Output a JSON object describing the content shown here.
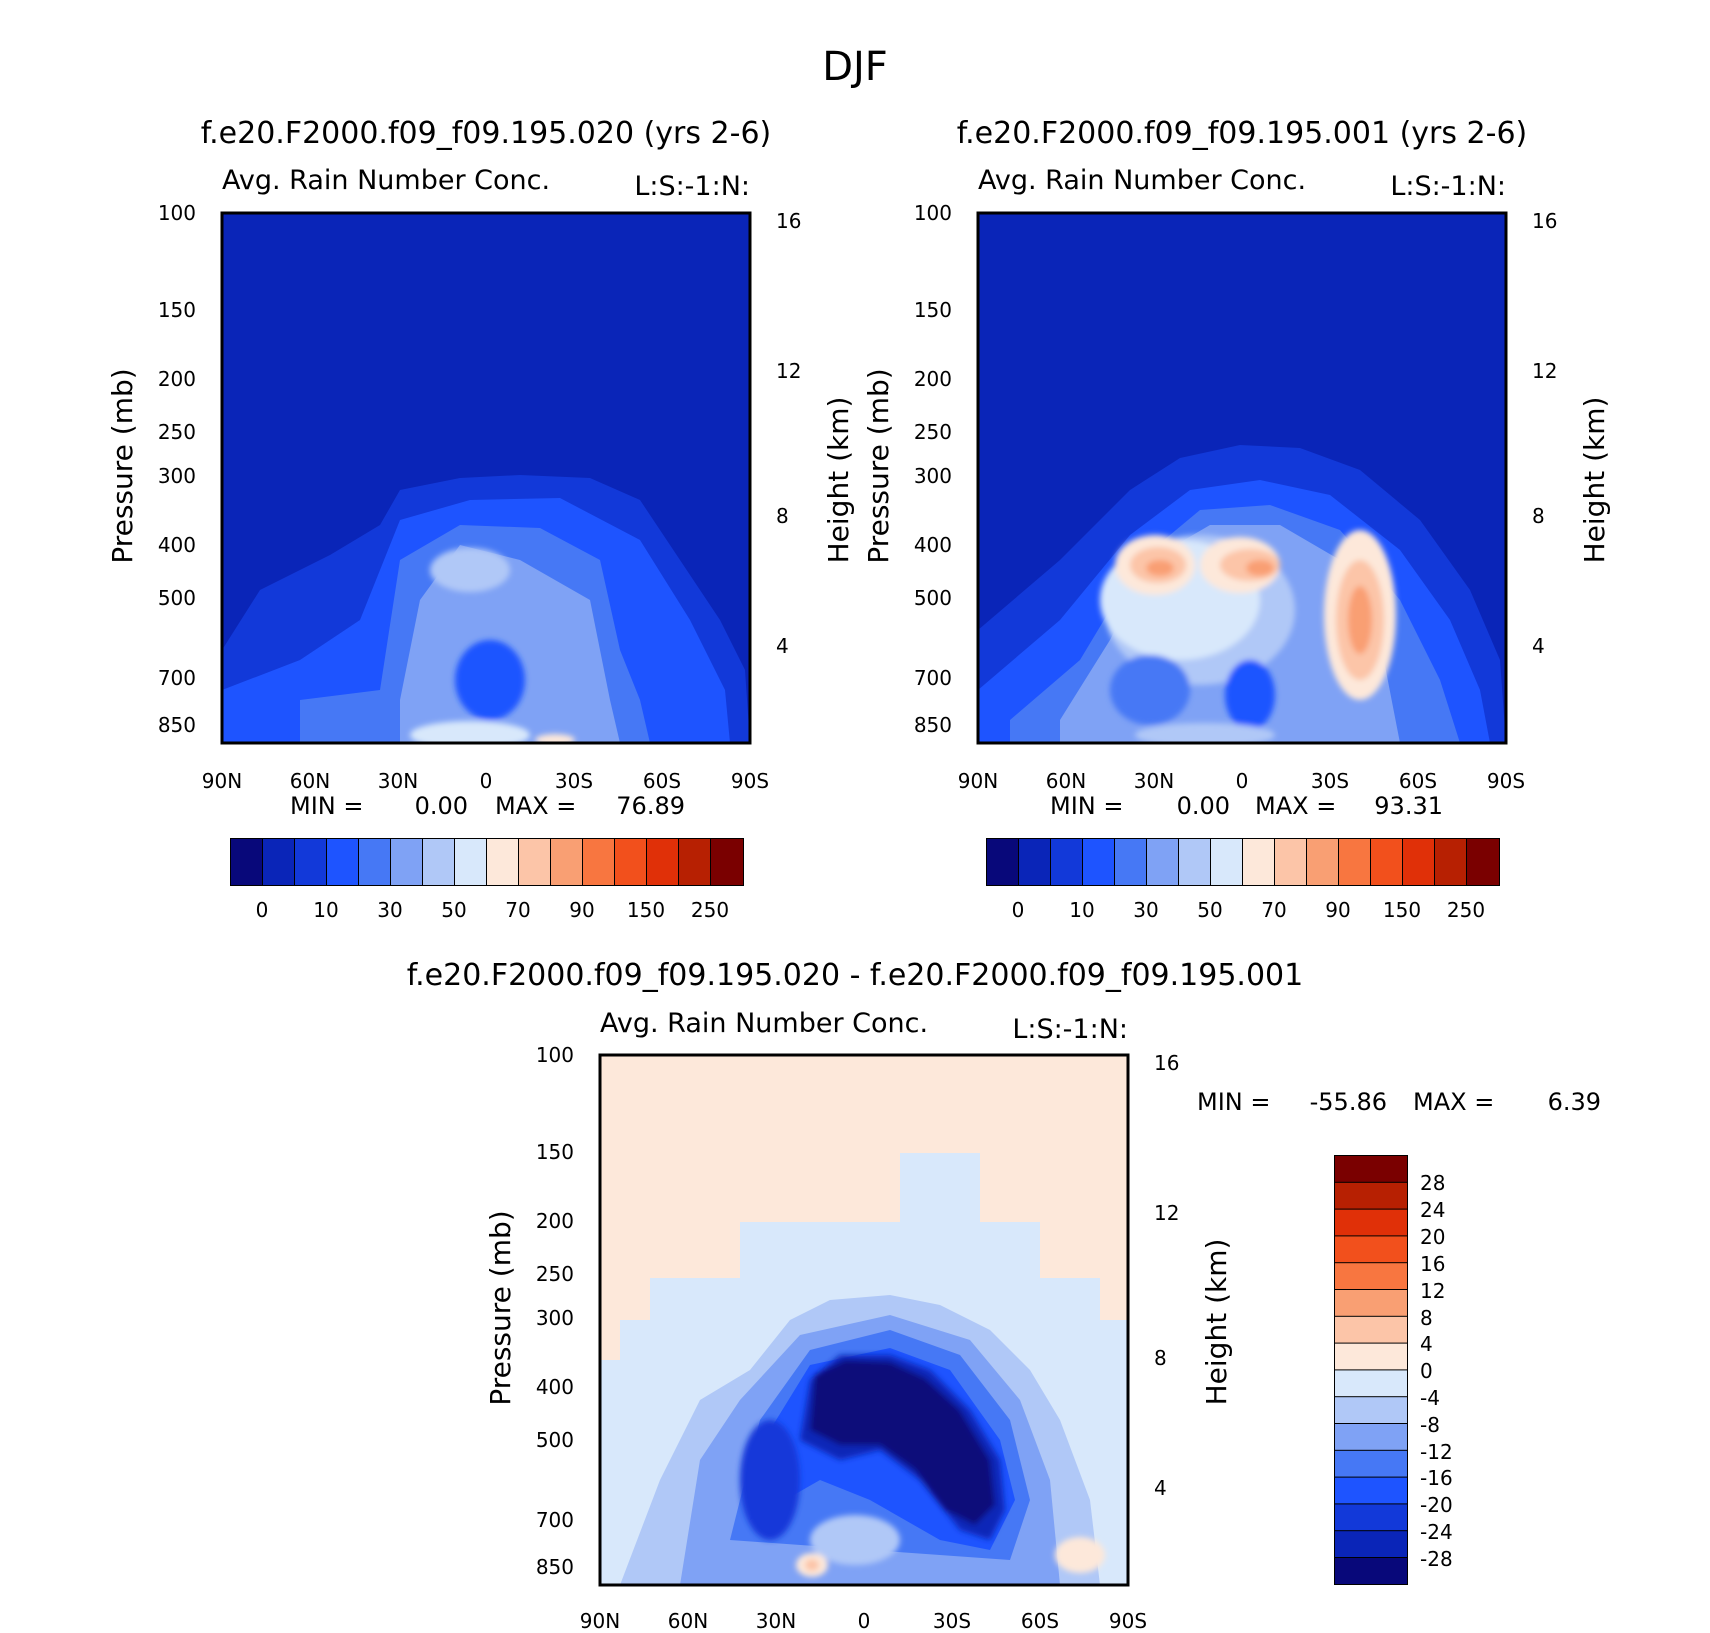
{
  "figure": {
    "title": "DJF",
    "colors": {
      "deep_blue": "#0f27b8",
      "seq_palette": [
        "#08087a",
        "#0a25b8",
        "#1239d9",
        "#1e54ff",
        "#4678f5",
        "#7fa2f5",
        "#b0c8f7",
        "#d8e8fb",
        "#fde8da",
        "#fcc5a8",
        "#f99f73",
        "#f87640",
        "#f2501c",
        "#e03008",
        "#b72002",
        "#7a0000"
      ],
      "diff_palette": [
        "#08087a",
        "#0a25b8",
        "#1239d9",
        "#1e54ff",
        "#4678f5",
        "#7fa2f5",
        "#b0c8f7",
        "#d8e8fb",
        "#fde8da",
        "#fcc5a8",
        "#f99f73",
        "#f87640",
        "#f2501c",
        "#e03008",
        "#b72002",
        "#7a0000"
      ]
    }
  },
  "chart_data": [
    {
      "type": "heatmap",
      "title": "f.e20.F2000.f09_f09.195.020 (yrs 2-6)",
      "subtitle_left": "Avg. Rain Number Conc.",
      "subtitle_right": "L:S:-1:N:",
      "xlabel": "",
      "ylabel": "Pressure (mb)",
      "ylabel_right": "Height (km)",
      "x_ticks": [
        "90N",
        "60N",
        "30N",
        "0",
        "30S",
        "60S",
        "90S"
      ],
      "y_ticks": [
        100,
        150,
        200,
        250,
        300,
        400,
        500,
        700,
        850
      ],
      "ylim": [
        100,
        920
      ],
      "height_ticks": [
        16,
        12,
        8,
        4
      ],
      "stats": {
        "min_label": "MIN =",
        "min": "0.00",
        "max_label": "MAX =",
        "max": "76.89"
      },
      "colorbar_labels": [
        "0",
        "10",
        "30",
        "50",
        "70",
        "90",
        "150",
        "250"
      ]
    },
    {
      "type": "heatmap",
      "title": "f.e20.F2000.f09_f09.195.001 (yrs 2-6)",
      "subtitle_left": "Avg. Rain Number Conc.",
      "subtitle_right": "L:S:-1:N:",
      "xlabel": "",
      "ylabel": "Pressure (mb)",
      "ylabel_right": "Height (km)",
      "x_ticks": [
        "90N",
        "60N",
        "30N",
        "0",
        "30S",
        "60S",
        "90S"
      ],
      "y_ticks": [
        100,
        150,
        200,
        250,
        300,
        400,
        500,
        700,
        850
      ],
      "ylim": [
        100,
        920
      ],
      "height_ticks": [
        16,
        12,
        8,
        4
      ],
      "stats": {
        "min_label": "MIN =",
        "min": "0.00",
        "max_label": "MAX =",
        "max": "93.31"
      },
      "colorbar_labels": [
        "0",
        "10",
        "30",
        "50",
        "70",
        "90",
        "150",
        "250"
      ]
    },
    {
      "type": "heatmap",
      "title": "f.e20.F2000.f09_f09.195.020 - f.e20.F2000.f09_f09.195.001",
      "subtitle_left": "Avg. Rain Number Conc.",
      "subtitle_right": "L:S:-1:N:",
      "xlabel": "",
      "ylabel": "Pressure (mb)",
      "ylabel_right": "Height (km)",
      "x_ticks": [
        "90N",
        "60N",
        "30N",
        "0",
        "30S",
        "60S",
        "90S"
      ],
      "y_ticks": [
        100,
        150,
        200,
        250,
        300,
        400,
        500,
        700,
        850
      ],
      "ylim": [
        100,
        920
      ],
      "height_ticks": [
        16,
        12,
        8,
        4
      ],
      "stats": {
        "min_label": "MIN =",
        "min": "-55.86",
        "max_label": "MAX =",
        "max": "6.39"
      },
      "colorbar_labels": [
        "28",
        "24",
        "20",
        "16",
        "12",
        "8",
        "4",
        "0",
        "-4",
        "-8",
        "-12",
        "-16",
        "-20",
        "-24",
        "-28"
      ]
    }
  ]
}
